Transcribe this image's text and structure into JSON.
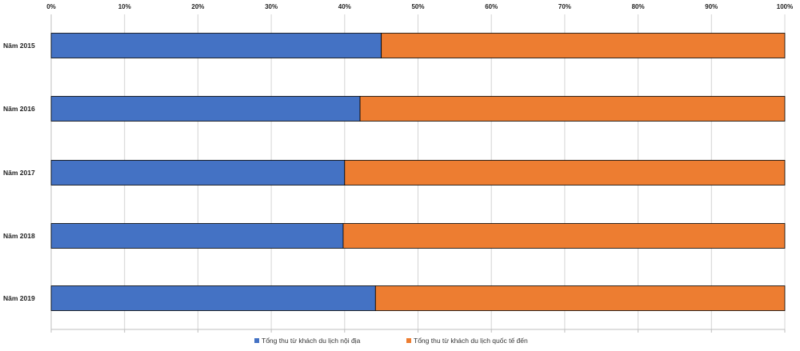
{
  "chart_data": {
    "type": "bar",
    "orientation": "horizontal",
    "stacked": "percent",
    "categories": [
      "Năm 2015",
      "Năm 2016",
      "Năm 2017",
      "Năm 2018",
      "Năm 2019"
    ],
    "series": [
      {
        "name": "Tổng thu từ khách du lịch nội địa",
        "values": [
          45,
          42.1,
          40,
          39.8,
          44.2
        ],
        "color": "#4472c4"
      },
      {
        "name": "Tổng thu từ khách du lịch quốc tế đến",
        "values": [
          55,
          57.9,
          60,
          60.2,
          55.8
        ],
        "color": "#ed7d31"
      }
    ],
    "xlim": [
      0,
      100
    ],
    "xticks": [
      0,
      10,
      20,
      30,
      40,
      50,
      60,
      70,
      80,
      90,
      100
    ],
    "xtick_labels": [
      "0%",
      "10%",
      "20%",
      "30%",
      "40%",
      "50%",
      "60%",
      "70%",
      "80%",
      "90%",
      "100%"
    ],
    "x_axis_position": "top",
    "grid": true,
    "legend_position": "bottom"
  }
}
